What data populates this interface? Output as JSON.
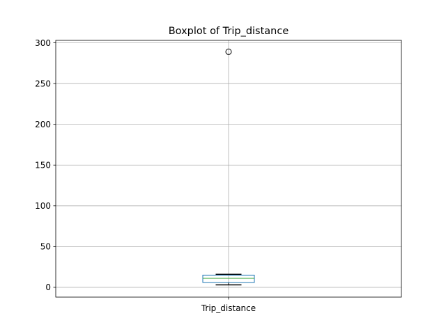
{
  "chart_data": {
    "type": "box",
    "title": "Boxplot of Trip_distance",
    "xlabel": "",
    "ylabel": "",
    "categories": [
      "Trip_distance"
    ],
    "ylim": [
      -12,
      303
    ],
    "yticks": [
      0,
      50,
      100,
      150,
      200,
      250,
      300
    ],
    "grid": true,
    "boxes": [
      {
        "category": "Trip_distance",
        "whisker_low": 3,
        "q1": 6,
        "median": 11,
        "q3": 15,
        "whisker_high": 16,
        "outliers": [
          289
        ]
      }
    ],
    "colors": {
      "box": "#1f77b4",
      "median": "#2ca02c",
      "whisker": "#000000",
      "grid": "#b0b0b0"
    }
  }
}
